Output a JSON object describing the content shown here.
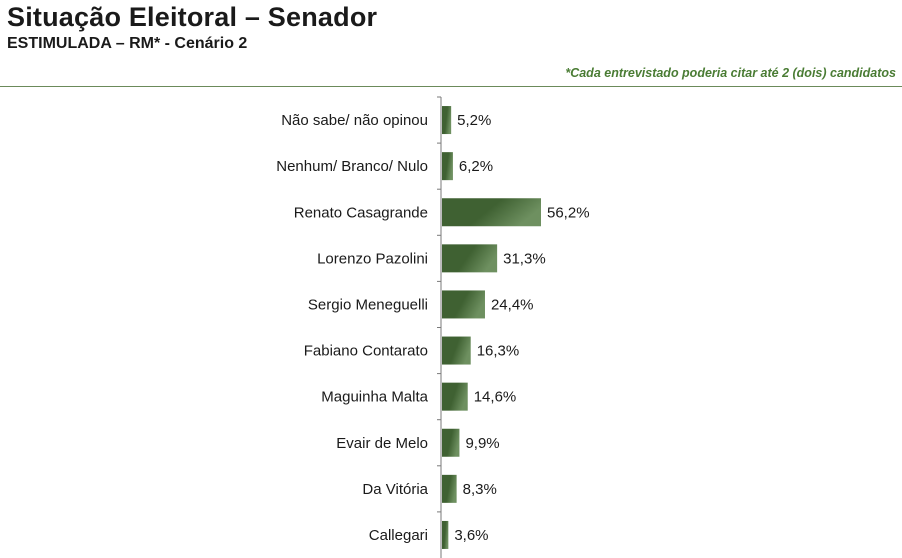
{
  "title": "Situação Eleitoral – Senador",
  "subtitle": "ESTIMULADA – RM* - Cenário 2",
  "note": "*Cada entrevistado poderia citar até 2 (dois) candidatos",
  "colors": {
    "bar_dark": "#3f6132",
    "bar_light": "#6e9060",
    "axis": "#7a7a7a",
    "note": "#4a7c34"
  },
  "chart_data": {
    "type": "bar",
    "orientation": "horizontal",
    "categories": [
      "Não sabe/ não opinou",
      "Nenhum/ Branco/ Nulo",
      "Renato Casagrande",
      "Lorenzo Pazolini",
      "Sergio Meneguelli",
      "Fabiano Contarato",
      "Maguinha Malta",
      "Evair de Melo",
      "Da Vitória",
      "Callegari"
    ],
    "values": [
      5.2,
      6.2,
      56.2,
      31.3,
      24.4,
      16.3,
      14.6,
      9.9,
      8.3,
      3.6
    ],
    "value_labels": [
      "5,2%",
      "6,2%",
      "56,2%",
      "31,3%",
      "24,4%",
      "16,3%",
      "14,6%",
      "9,9%",
      "8,3%",
      "3,6%"
    ],
    "xlim": [
      0,
      60
    ],
    "grid": false,
    "legend": "none"
  }
}
